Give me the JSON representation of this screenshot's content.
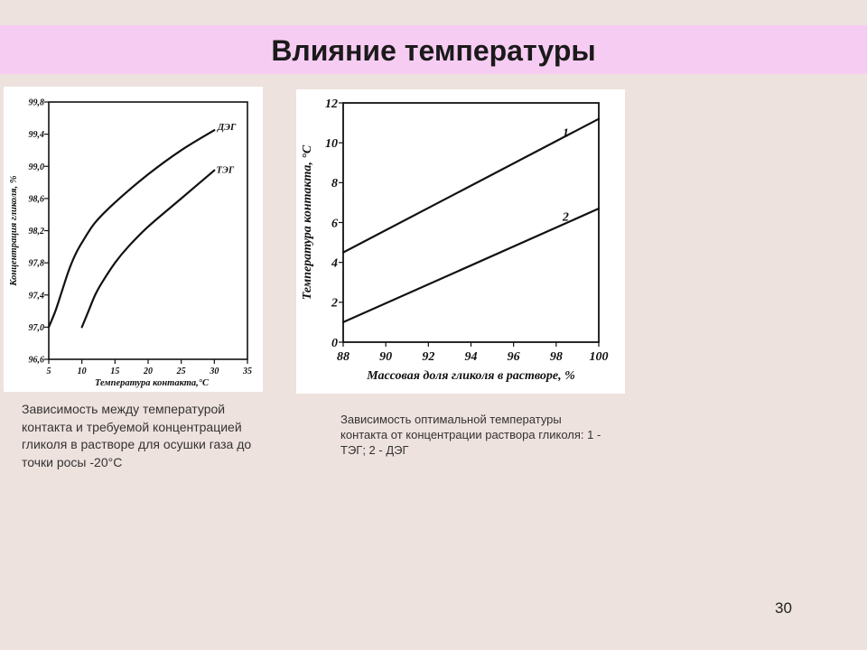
{
  "title": "Влияние температуры",
  "page_number": "30",
  "captions": {
    "left": "Зависимость между температурой контакта и требуемой концентрацией гликоля в растворе для осушки газа до точки росы -20°С",
    "right": "Зависимость оптимальной температуры контакта от концентрации раствора гликоля: 1 - ТЭГ; 2 - ДЭГ"
  },
  "chart_data": [
    {
      "type": "line",
      "title": "",
      "xlabel": "Температура контакта,°С",
      "ylabel": "Концентрация гликоля, %",
      "xlim": [
        5,
        35
      ],
      "ylim": [
        96.6,
        99.8
      ],
      "x_ticks": [
        "5",
        "10",
        "15",
        "20",
        "25",
        "30",
        "35"
      ],
      "y_ticks": [
        "96,6",
        "97,0",
        "97,4",
        "97,8",
        "98,2",
        "98,6",
        "99,0",
        "99,4",
        "99,8"
      ],
      "grid": false,
      "legend": "inline labels at line ends",
      "series": [
        {
          "name": "ДЭГ",
          "x": [
            5,
            6,
            7,
            8,
            9,
            10,
            12,
            15,
            20,
            25,
            30
          ],
          "y": [
            97.0,
            97.2,
            97.45,
            97.7,
            97.9,
            98.05,
            98.3,
            98.55,
            98.9,
            99.2,
            99.45
          ]
        },
        {
          "name": "ТЭГ",
          "x": [
            10,
            11,
            12,
            13,
            15,
            17,
            20,
            25,
            30
          ],
          "y": [
            97.0,
            97.2,
            97.4,
            97.55,
            97.8,
            98.0,
            98.25,
            98.6,
            98.95
          ]
        }
      ],
      "color": "#111111"
    },
    {
      "type": "line",
      "title": "",
      "xlabel": "Массовая доля гликоля в растворе, %",
      "ylabel": "Температура контакта, °С",
      "xlim": [
        88,
        100
      ],
      "ylim": [
        0,
        12
      ],
      "x_ticks": [
        "88",
        "90",
        "92",
        "94",
        "96",
        "98",
        "100"
      ],
      "y_ticks": [
        "0",
        "2",
        "4",
        "6",
        "8",
        "10",
        "12"
      ],
      "grid": false,
      "legend": "inline labels above lines",
      "series": [
        {
          "name": "1",
          "x": [
            88,
            100
          ],
          "y": [
            4.5,
            11.2
          ]
        },
        {
          "name": "2",
          "x": [
            88,
            100
          ],
          "y": [
            1.0,
            6.7
          ]
        }
      ],
      "color": "#111111"
    }
  ]
}
